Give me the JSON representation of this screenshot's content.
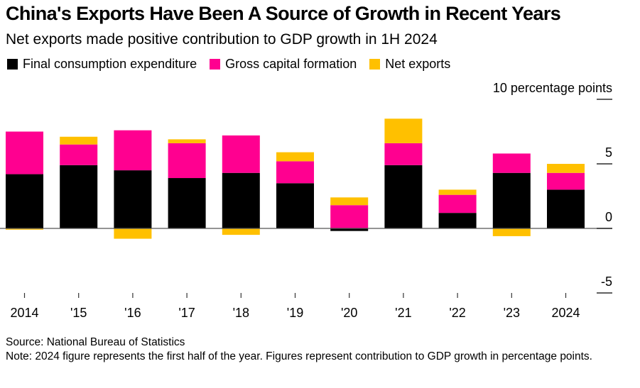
{
  "header": {
    "title": "China's Exports Have Been A Source of Growth in Recent Years",
    "subtitle": "Net exports made positive contribution to GDP growth in 1H 2024"
  },
  "legend": [
    {
      "label": "Final consumption expenditure",
      "color": "#000000"
    },
    {
      "label": "Gross capital formation",
      "color": "#ff0090"
    },
    {
      "label": "Net exports",
      "color": "#ffc000"
    }
  ],
  "footer": {
    "source": "Source: National Bureau of Statistics",
    "note": "Note: 2024 figure represents the first half of the year. Figures represent contribution to GDP growth in percentage points."
  },
  "chart_data": {
    "type": "bar",
    "stacked": true,
    "title": "China's Exports Have Been A Source of Growth in Recent Years",
    "subtitle": "Net exports made positive contribution to GDP growth in 1H 2024",
    "xlabel": "",
    "ylabel": "10 percentage points",
    "ylim": [
      -5,
      10
    ],
    "yticks": [
      {
        "value": 10,
        "label": "10 percentage points"
      },
      {
        "value": 5,
        "label": "5"
      },
      {
        "value": 0,
        "label": "0"
      },
      {
        "value": -5,
        "label": "-5"
      }
    ],
    "categories": [
      "2014",
      "'15",
      "'16",
      "'17",
      "'18",
      "'19",
      "'20",
      "'21",
      "'22",
      "'23",
      "2024"
    ],
    "series": [
      {
        "name": "Final consumption expenditure",
        "color": "#000000",
        "values": [
          4.2,
          4.9,
          4.5,
          3.9,
          4.3,
          3.5,
          -0.2,
          4.9,
          1.2,
          4.3,
          3.0
        ]
      },
      {
        "name": "Gross capital formation",
        "color": "#ff0090",
        "values": [
          3.3,
          1.6,
          3.1,
          2.7,
          2.9,
          1.7,
          1.8,
          1.7,
          1.4,
          1.5,
          1.3
        ]
      },
      {
        "name": "Net exports",
        "color": "#ffc000",
        "values": [
          -0.1,
          0.6,
          -0.8,
          0.3,
          -0.5,
          0.7,
          0.6,
          1.9,
          0.4,
          -0.6,
          0.7
        ]
      }
    ],
    "grid": false,
    "legend_position": "top-left",
    "axis_side": "right"
  }
}
